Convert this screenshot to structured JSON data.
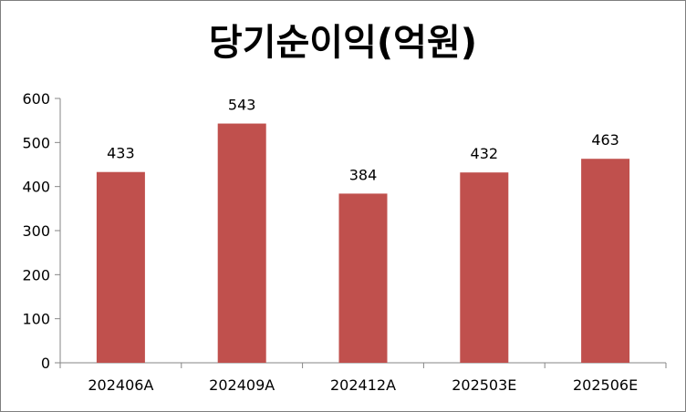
{
  "chart_data": {
    "type": "bar",
    "title": "당기순이익(억원)",
    "categories": [
      "202406A",
      "202409A",
      "202412A",
      "202503E",
      "202506E"
    ],
    "series": [
      {
        "values": [
          433,
          543,
          384,
          432,
          463
        ]
      }
    ],
    "data_labels": [
      "433",
      "543",
      "384",
      "432",
      "463"
    ],
    "y_ticks": [
      "0",
      "100",
      "200",
      "300",
      "400",
      "500",
      "600"
    ],
    "ylim": [
      0,
      600
    ],
    "grid": false,
    "legend": "none",
    "bar_color": "#c0504d",
    "axis_color": "#868686"
  }
}
